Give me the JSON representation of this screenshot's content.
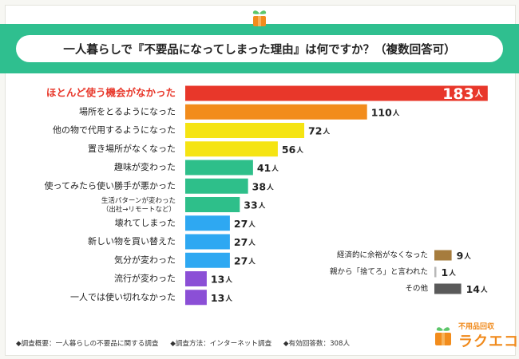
{
  "title": "一人暮らしで『不要品になってしまった理由』は何ですか？（複数回答可）",
  "colors": {
    "header": "#2fbf8f",
    "highlight": "#e8372a",
    "orange": "#f28c1c",
    "yellow": "#f5e413",
    "green": "#2ebf8a",
    "blue": "#2ea8f2",
    "purple": "#8b4fd6",
    "brown": "#a67c3d",
    "darkgray": "#5a5a5a",
    "lightgray": "#b8b8b8"
  },
  "chart_data": {
    "type": "bar",
    "orientation": "horizontal",
    "unit": "人",
    "series": [
      {
        "label": "ほとんど使う機会がなかった",
        "value": 183,
        "color": "highlight",
        "highlight": true
      },
      {
        "label": "場所をとるようになった",
        "value": 110,
        "color": "orange"
      },
      {
        "label": "他の物で代用するようになった",
        "value": 72,
        "color": "yellow"
      },
      {
        "label": "置き場所がなくなった",
        "value": 56,
        "color": "yellow"
      },
      {
        "label": "趣味が変わった",
        "value": 41,
        "color": "green"
      },
      {
        "label": "使ってみたら使い勝手が悪かった",
        "value": 38,
        "color": "green"
      },
      {
        "label": [
          "生活パターンが変わった",
          "（出社→リモートなど）"
        ],
        "value": 33,
        "color": "green"
      },
      {
        "label": "壊れてしまった",
        "value": 27,
        "color": "blue"
      },
      {
        "label": "新しい物を買い替えた",
        "value": 27,
        "color": "blue"
      },
      {
        "label": "気分が変わった",
        "value": 27,
        "color": "blue"
      },
      {
        "label": "流行が変わった",
        "value": 13,
        "color": "purple"
      },
      {
        "label": "一人では使い切れなかった",
        "value": 13,
        "color": "purple"
      }
    ],
    "side_series": [
      {
        "label": "経済的に余裕がなくなった",
        "value": 9,
        "color": "brown"
      },
      {
        "label": "親から「捨てろ」と言われた",
        "value": 1,
        "color": "lightgray"
      },
      {
        "label": "その他",
        "value": 14,
        "color": "darkgray"
      }
    ]
  },
  "footnotes": [
    "◆調査概要：一人暮らしの不要品に関する調査",
    "◆調査方法：インターネット調査",
    "◆有効回答数：308人"
  ],
  "brand": {
    "tagline": "不用品回収",
    "name": "ラクエコ"
  }
}
